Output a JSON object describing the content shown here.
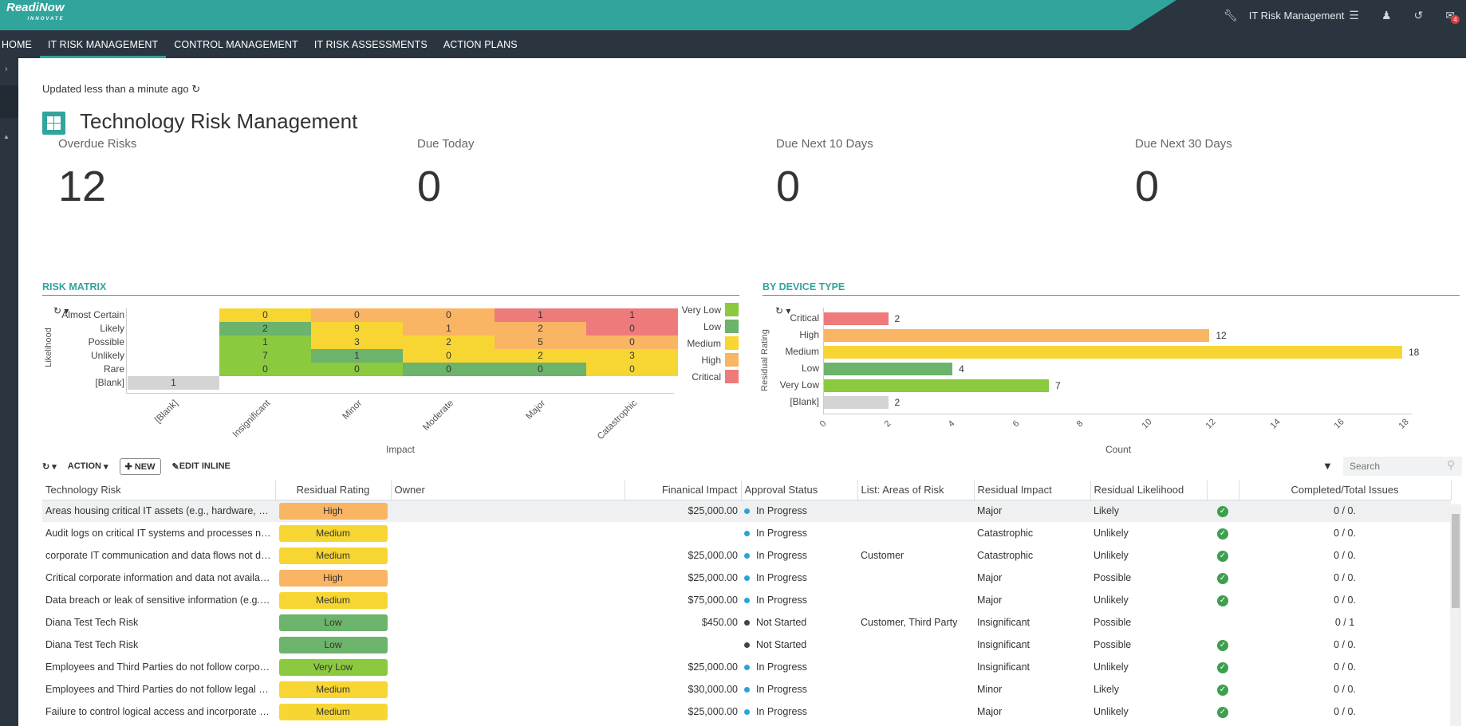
{
  "app": {
    "logo": "ReadiNow",
    "logo_sub": "INNOVATE",
    "app_name": "IT Risk Management",
    "notifications": "4"
  },
  "nav": [
    "HOME",
    "IT RISK MANAGEMENT",
    "CONTROL MANAGEMENT",
    "IT RISK ASSESSMENTS",
    "ACTION PLANS"
  ],
  "updated": "Updated less than a minute ago",
  "title": "Technology Risk Management",
  "kpis": [
    {
      "label": "Overdue Risks",
      "value": "12"
    },
    {
      "label": "Due Today",
      "value": "0"
    },
    {
      "label": "Due Next 10 Days",
      "value": "0"
    },
    {
      "label": "Due Next 30 Days",
      "value": "0"
    }
  ],
  "risk_matrix": {
    "section": "RISK MATRIX",
    "y_label": "Likelihood",
    "x_label": "Impact",
    "rows": [
      "Almost Certain",
      "Likely",
      "Possible",
      "Unlikely",
      "Rare",
      "[Blank]"
    ],
    "cols": [
      "[Blank]",
      "Insignificant",
      "Minor",
      "Moderate",
      "Major",
      "Catastrophic"
    ],
    "values": [
      [
        null,
        0,
        0,
        0,
        1,
        1
      ],
      [
        null,
        2,
        9,
        1,
        2,
        0
      ],
      [
        null,
        1,
        3,
        2,
        5,
        0
      ],
      [
        null,
        7,
        1,
        0,
        2,
        3
      ],
      [
        null,
        0,
        0,
        0,
        0,
        0
      ],
      [
        1,
        null,
        null,
        null,
        null,
        null
      ]
    ],
    "colors": [
      [
        "",
        "#f7d633",
        "#f9b464",
        "#f9b464",
        "#ee7b7b",
        "#ee7b7b"
      ],
      [
        "",
        "#6cb36b",
        "#f7d633",
        "#f9b464",
        "#f9b464",
        "#ee7b7b"
      ],
      [
        "",
        "#8bc93f",
        "#f7d633",
        "#f7d633",
        "#f9b464",
        "#f9b464"
      ],
      [
        "",
        "#8bc93f",
        "#6cb36b",
        "#f7d633",
        "#f7d633",
        "#f7d633"
      ],
      [
        "",
        "#8bc93f",
        "#8bc93f",
        "#6cb36b",
        "#6cb36b",
        "#f7d633"
      ],
      [
        "#d4d4d4",
        "",
        "",
        "",
        "",
        ""
      ]
    ],
    "legend": [
      {
        "label": "Very Low",
        "color": "#8bc93f"
      },
      {
        "label": "Low",
        "color": "#6cb36b"
      },
      {
        "label": "Medium",
        "color": "#f7d633"
      },
      {
        "label": "High",
        "color": "#f9b464"
      },
      {
        "label": "Critical",
        "color": "#ee7b7b"
      }
    ]
  },
  "chart_data": {
    "type": "bar",
    "orientation": "horizontal",
    "title": "BY DEVICE TYPE",
    "ylabel": "Residual Rating",
    "xlabel": "Count",
    "categories": [
      "Critical",
      "High",
      "Medium",
      "Low",
      "Very Low",
      "[Blank]"
    ],
    "values": [
      2,
      12,
      18,
      4,
      7,
      2
    ],
    "colors": [
      "#ee7b7b",
      "#f9b464",
      "#f7d633",
      "#6cb36b",
      "#8bc93f",
      "#d4d4d4"
    ],
    "xlim": [
      0,
      18
    ],
    "xticks": [
      "0",
      "2",
      "4",
      "6",
      "8",
      "10",
      "12",
      "14",
      "16",
      "18"
    ]
  },
  "toolbar": {
    "action": "ACTION",
    "new": "NEW",
    "edit": "EDIT INLINE",
    "search_placeholder": "Search"
  },
  "table": {
    "columns": [
      "Technology Risk",
      "Residual Rating",
      "Owner",
      "Finanical Impact",
      "Approval Status",
      "List: Areas of Risk",
      "Residual Impact",
      "Residual Likelihood",
      "",
      "Completed/Total Issues"
    ],
    "rows": [
      {
        "risk": "Areas housing critical IT assets (e.g., hardware, devi...",
        "rating": "High",
        "rcolor": "#f9b464",
        "owner": "",
        "impact_amt": "$25,000.00",
        "status": "In Progress",
        "scolor": "#2aa3d8",
        "areas": "",
        "rimpact": "Major",
        "rlike": "Likely",
        "check": true,
        "issues": "0 / 0."
      },
      {
        "risk": "Audit logs on critical IT systems and processes not ...",
        "rating": "Medium",
        "rcolor": "#f7d633",
        "owner": "",
        "impact_amt": "",
        "status": "In Progress",
        "scolor": "#2aa3d8",
        "areas": "",
        "rimpact": "Catastrophic",
        "rlike": "Unlikely",
        "check": true,
        "issues": "0 / 0."
      },
      {
        "risk": "corporate IT communication and data flows not do...",
        "rating": "Medium",
        "rcolor": "#f7d633",
        "owner": "",
        "impact_amt": "$25,000.00",
        "status": "In Progress",
        "scolor": "#2aa3d8",
        "areas": "Customer",
        "rimpact": "Catastrophic",
        "rlike": "Unlikely",
        "check": true,
        "issues": "0 / 0."
      },
      {
        "risk": "Critical corporate information and data not availabl...",
        "rating": "High",
        "rcolor": "#f9b464",
        "owner": "",
        "impact_amt": "$25,000.00",
        "status": "In Progress",
        "scolor": "#2aa3d8",
        "areas": "",
        "rimpact": "Major",
        "rlike": "Possible",
        "check": true,
        "issues": "0 / 0."
      },
      {
        "risk": "Data breach or leak of sensitive information (e.g., Fi...",
        "rating": "Medium",
        "rcolor": "#f7d633",
        "owner": "",
        "impact_amt": "$75,000.00",
        "status": "In Progress",
        "scolor": "#2aa3d8",
        "areas": "",
        "rimpact": "Major",
        "rlike": "Unlikely",
        "check": true,
        "issues": "0 / 0."
      },
      {
        "risk": "Diana Test Tech Risk",
        "rating": "Low",
        "rcolor": "#6cb36b",
        "owner": "",
        "impact_amt": "$450.00",
        "status": "Not Started",
        "scolor": "#444444",
        "areas": "Customer, Third Party",
        "rimpact": "Insignificant",
        "rlike": "Possible",
        "check": false,
        "issues": "0 / 1"
      },
      {
        "risk": "Diana Test Tech Risk",
        "rating": "Low",
        "rcolor": "#6cb36b",
        "owner": "",
        "impact_amt": "",
        "status": "Not Started",
        "scolor": "#444444",
        "areas": "",
        "rimpact": "Insignificant",
        "rlike": "Possible",
        "check": true,
        "issues": "0 / 0."
      },
      {
        "risk": "Employees and Third Parties do not follow corporat...",
        "rating": "Very Low",
        "rcolor": "#8bc93f",
        "owner": "",
        "impact_amt": "$25,000.00",
        "status": "In Progress",
        "scolor": "#2aa3d8",
        "areas": "",
        "rimpact": "Insignificant",
        "rlike": "Unlikely",
        "check": true,
        "issues": "0 / 0."
      },
      {
        "risk": "Employees and Third Parties do not follow legal an...",
        "rating": "Medium",
        "rcolor": "#f7d633",
        "owner": "",
        "impact_amt": "$30,000.00",
        "status": "In Progress",
        "scolor": "#2aa3d8",
        "areas": "",
        "rimpact": "Minor",
        "rlike": "Likely",
        "check": true,
        "issues": "0 / 0."
      },
      {
        "risk": "Failure to control logical access and incorporate pri...",
        "rating": "Medium",
        "rcolor": "#f7d633",
        "owner": "",
        "impact_amt": "$25,000.00",
        "status": "In Progress",
        "scolor": "#2aa3d8",
        "areas": "",
        "rimpact": "Major",
        "rlike": "Unlikely",
        "check": true,
        "issues": "0 / 0."
      }
    ]
  }
}
